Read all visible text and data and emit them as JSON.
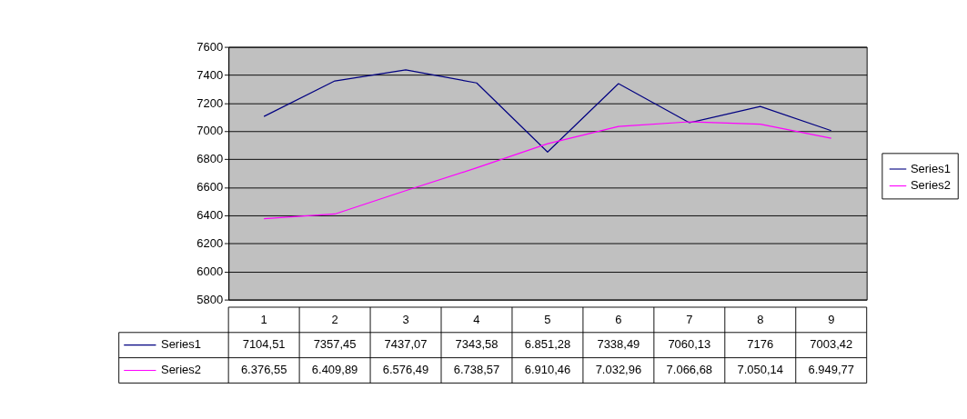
{
  "chart_data": {
    "type": "line",
    "categories": [
      "1",
      "2",
      "3",
      "4",
      "5",
      "6",
      "7",
      "8",
      "9"
    ],
    "series": [
      {
        "name": "Series1",
        "color": "#000080",
        "values": [
          7104.51,
          7357.45,
          7437.07,
          7343.58,
          6851.28,
          7338.49,
          7060.13,
          7176,
          7003.42
        ],
        "value_labels": [
          "7104,51",
          "7357,45",
          "7437,07",
          "7343,58",
          "6.851,28",
          "7338,49",
          "7060,13",
          "7176",
          "7003,42"
        ]
      },
      {
        "name": "Series2",
        "color": "#ff00ff",
        "values": [
          6376.55,
          6409.89,
          6576.49,
          6738.57,
          6910.46,
          7032.96,
          7066.68,
          7050.14,
          6949.77
        ],
        "value_labels": [
          "6.376,55",
          "6.409,89",
          "6.576,49",
          "6.738,57",
          "6.910,46",
          "7.032,96",
          "7.066,68",
          "7.050,14",
          "6.949,77"
        ]
      }
    ],
    "ylim": [
      5800,
      7600
    ],
    "yticks": [
      5800,
      6000,
      6200,
      6400,
      6600,
      6800,
      7000,
      7200,
      7400,
      7600
    ],
    "grid": "y",
    "legend": "right"
  }
}
